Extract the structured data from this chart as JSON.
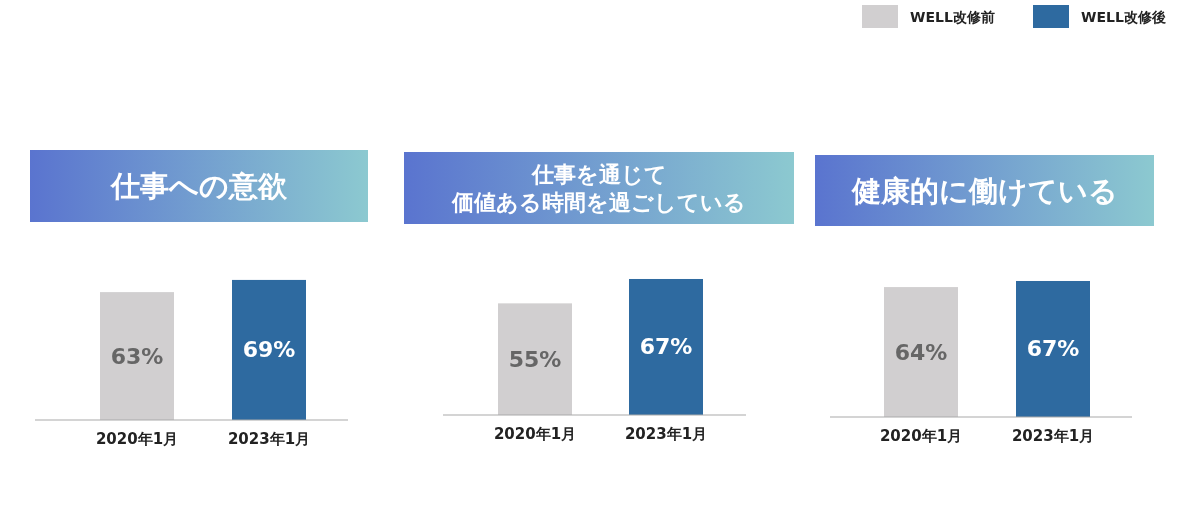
{
  "chart_data": [
    {
      "type": "bar",
      "title": "仕事への意欲",
      "categories": [
        "2020年1月",
        "2023年1月"
      ],
      "series": [
        {
          "color": "#d1cfd0",
          "values": [
            63,
            null
          ],
          "value_labels": [
            "63%",
            null
          ]
        },
        {
          "color": "#2e6aa0",
          "values": [
            null,
            69
          ],
          "value_labels": [
            null,
            "69%"
          ]
        }
      ]
    },
    {
      "type": "bar",
      "title": "仕事を通じて価値ある時間を過ごしている",
      "categories": [
        "2020年1月",
        "2023年1月"
      ],
      "series": [
        {
          "color": "#d1cfd0",
          "values": [
            55,
            null
          ],
          "value_labels": [
            "55%",
            null
          ]
        },
        {
          "color": "#2e6aa0",
          "values": [
            null,
            67
          ],
          "value_labels": [
            null,
            "67%"
          ]
        }
      ]
    },
    {
      "type": "bar",
      "title": "健康的に働けている",
      "categories": [
        "2020年1月",
        "2023年1月"
      ],
      "legend": "top right",
      "series": [
        {
          "name": "WELL改修前",
          "color": "#d1cfd0",
          "values": [
            64,
            null
          ],
          "value_labels": [
            "64%",
            null
          ]
        },
        {
          "name": "WELL改修後",
          "color": "#2e6aa0",
          "values": [
            null,
            67
          ],
          "value_labels": [
            null,
            "67%"
          ]
        }
      ]
    }
  ]
}
